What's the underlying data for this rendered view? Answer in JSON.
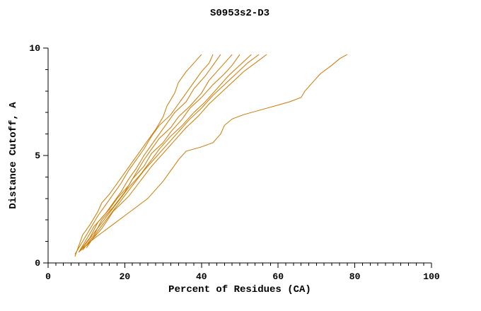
{
  "chart_data": {
    "type": "line",
    "title": "S0953s2-D3",
    "xlabel": "Percent of Residues (CA)",
    "ylabel": "Distance Cutoff, A",
    "xlim": [
      0,
      100
    ],
    "ylim": [
      0,
      10
    ],
    "x_major_ticks": [
      0,
      20,
      40,
      60,
      80,
      100
    ],
    "x_minor_step": 2,
    "y_major_ticks": [
      0,
      5,
      10
    ],
    "y_minor_step": 1,
    "grid": false,
    "legend": "none",
    "line_color": "#cc7a00",
    "series": [
      [
        [
          7,
          0.3
        ],
        [
          8,
          0.8
        ],
        [
          9,
          1.3
        ],
        [
          11,
          1.8
        ],
        [
          13,
          2.4
        ],
        [
          14,
          2.8
        ],
        [
          16,
          3.2
        ],
        [
          18,
          3.7
        ],
        [
          20,
          4.2
        ],
        [
          22,
          4.7
        ],
        [
          24,
          5.2
        ],
        [
          26,
          5.7
        ],
        [
          28,
          6.2
        ],
        [
          30,
          6.8
        ],
        [
          31,
          7.3
        ],
        [
          33,
          7.9
        ],
        [
          34,
          8.4
        ],
        [
          36,
          8.9
        ],
        [
          38,
          9.3
        ],
        [
          40,
          9.7
        ]
      ],
      [
        [
          7,
          0.4
        ],
        [
          9,
          1.0
        ],
        [
          11,
          1.6
        ],
        [
          13,
          2.2
        ],
        [
          15,
          2.7
        ],
        [
          17,
          3.2
        ],
        [
          19,
          3.7
        ],
        [
          21,
          4.3
        ],
        [
          23,
          4.8
        ],
        [
          25,
          5.3
        ],
        [
          27,
          5.9
        ],
        [
          29,
          6.4
        ],
        [
          32,
          6.9
        ],
        [
          34,
          7.4
        ],
        [
          36,
          7.9
        ],
        [
          38,
          8.4
        ],
        [
          40,
          8.9
        ],
        [
          42,
          9.3
        ],
        [
          43,
          9.7
        ]
      ],
      [
        [
          8,
          0.5
        ],
        [
          10,
          1.1
        ],
        [
          12,
          1.7
        ],
        [
          15,
          2.3
        ],
        [
          17,
          2.8
        ],
        [
          19,
          3.3
        ],
        [
          21,
          3.9
        ],
        [
          23,
          4.4
        ],
        [
          25,
          5.0
        ],
        [
          27,
          5.5
        ],
        [
          29,
          6.0
        ],
        [
          31,
          6.5
        ],
        [
          33,
          7.0
        ],
        [
          36,
          7.5
        ],
        [
          38,
          8.1
        ],
        [
          41,
          8.7
        ],
        [
          43,
          9.2
        ],
        [
          45,
          9.7
        ]
      ],
      [
        [
          8,
          0.5
        ],
        [
          11,
          1.2
        ],
        [
          13,
          1.9
        ],
        [
          16,
          2.5
        ],
        [
          18,
          3.0
        ],
        [
          21,
          3.6
        ],
        [
          23,
          4.2
        ],
        [
          25,
          4.8
        ],
        [
          27,
          5.3
        ],
        [
          29,
          5.8
        ],
        [
          32,
          6.3
        ],
        [
          34,
          6.8
        ],
        [
          37,
          7.3
        ],
        [
          40,
          7.9
        ],
        [
          42,
          8.5
        ],
        [
          45,
          9.1
        ],
        [
          48,
          9.7
        ]
      ],
      [
        [
          9,
          0.6
        ],
        [
          12,
          1.3
        ],
        [
          14,
          2.0
        ],
        [
          17,
          2.6
        ],
        [
          20,
          3.3
        ],
        [
          22,
          3.9
        ],
        [
          25,
          4.5
        ],
        [
          27,
          5.1
        ],
        [
          30,
          5.6
        ],
        [
          32,
          6.1
        ],
        [
          35,
          6.7
        ],
        [
          37,
          7.2
        ],
        [
          40,
          7.7
        ],
        [
          43,
          8.3
        ],
        [
          46,
          8.8
        ],
        [
          48,
          9.2
        ],
        [
          50,
          9.7
        ]
      ],
      [
        [
          9,
          0.7
        ],
        [
          12,
          1.4
        ],
        [
          15,
          2.1
        ],
        [
          18,
          2.8
        ],
        [
          21,
          3.5
        ],
        [
          24,
          4.1
        ],
        [
          27,
          4.8
        ],
        [
          29,
          5.3
        ],
        [
          32,
          5.9
        ],
        [
          35,
          6.4
        ],
        [
          38,
          7.0
        ],
        [
          41,
          7.5
        ],
        [
          44,
          8.1
        ],
        [
          47,
          8.7
        ],
        [
          50,
          9.2
        ],
        [
          53,
          9.7
        ]
      ],
      [
        [
          10,
          0.7
        ],
        [
          13,
          1.5
        ],
        [
          16,
          2.2
        ],
        [
          19,
          2.9
        ],
        [
          22,
          3.6
        ],
        [
          25,
          4.3
        ],
        [
          28,
          4.9
        ],
        [
          31,
          5.5
        ],
        [
          34,
          6.1
        ],
        [
          37,
          6.7
        ],
        [
          40,
          7.2
        ],
        [
          43,
          7.8
        ],
        [
          46,
          8.3
        ],
        [
          49,
          8.8
        ],
        [
          52,
          9.3
        ],
        [
          55,
          9.7
        ]
      ],
      [
        [
          10,
          0.8
        ],
        [
          14,
          1.6
        ],
        [
          17,
          2.4
        ],
        [
          21,
          3.1
        ],
        [
          24,
          3.8
        ],
        [
          27,
          4.5
        ],
        [
          30,
          5.1
        ],
        [
          33,
          5.7
        ],
        [
          36,
          6.3
        ],
        [
          39,
          6.8
        ],
        [
          42,
          7.4
        ],
        [
          45,
          7.9
        ],
        [
          48,
          8.4
        ],
        [
          51,
          8.9
        ],
        [
          54,
          9.3
        ],
        [
          57,
          9.7
        ]
      ],
      [
        [
          8,
          0.5
        ],
        [
          11,
          1.0
        ],
        [
          14,
          1.4
        ],
        [
          17,
          1.8
        ],
        [
          20,
          2.2
        ],
        [
          23,
          2.6
        ],
        [
          26,
          3.0
        ],
        [
          28,
          3.4
        ],
        [
          30,
          3.8
        ],
        [
          32,
          4.3
        ],
        [
          34,
          4.8
        ],
        [
          36,
          5.2
        ],
        [
          40,
          5.4
        ],
        [
          43,
          5.6
        ],
        [
          45,
          6.0
        ],
        [
          46,
          6.4
        ],
        [
          48,
          6.7
        ],
        [
          51,
          6.9
        ],
        [
          55,
          7.1
        ],
        [
          59,
          7.3
        ],
        [
          63,
          7.5
        ],
        [
          66,
          7.7
        ],
        [
          67,
          8.0
        ],
        [
          69,
          8.4
        ],
        [
          71,
          8.8
        ],
        [
          74,
          9.2
        ],
        [
          76,
          9.5
        ],
        [
          78,
          9.7
        ]
      ]
    ]
  }
}
